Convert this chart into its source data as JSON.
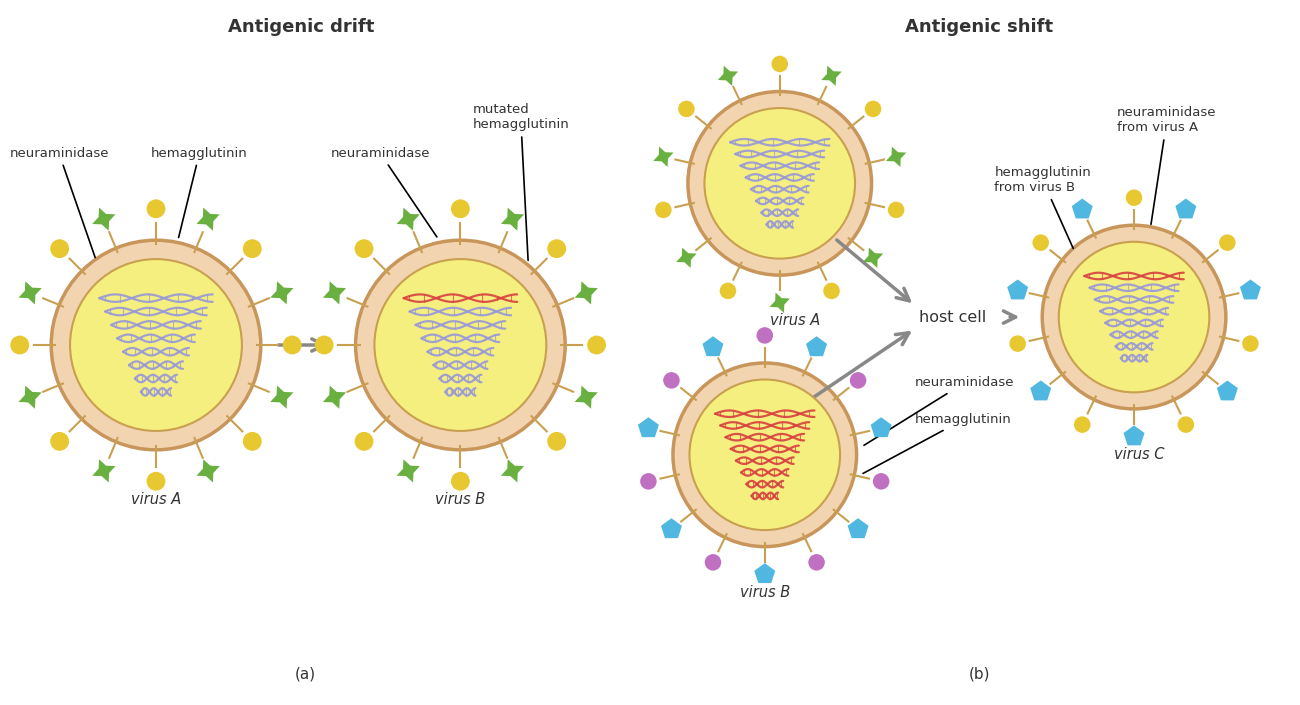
{
  "title_left": "Antigenic drift",
  "title_right": "Antigenic shift",
  "label_a": "(a)",
  "label_b": "(b)",
  "bg_color": "#ffffff",
  "virus_outer_color": "#f2d4b0",
  "virus_ring_edge": "#c8965a",
  "virus_inner_color": "#f5ef80",
  "virus_inner_edge": "#c8a050",
  "neuraminidase_color_a": "#e8c830",
  "hemagglutinin_color_a": "#6ab040",
  "neuraminidase_color_b_shift": "#c070c0",
  "hemagglutinin_color_b_shift": "#50b8e0",
  "neuraminidase_color_c": "#e8c830",
  "hemagglutinin_color_c": "#50b8e0",
  "dna_purple": "#9898d8",
  "dna_red": "#d84040",
  "arrow_color": "#888888",
  "text_color": "#333333",
  "spike_stem_color": "#c8a050"
}
